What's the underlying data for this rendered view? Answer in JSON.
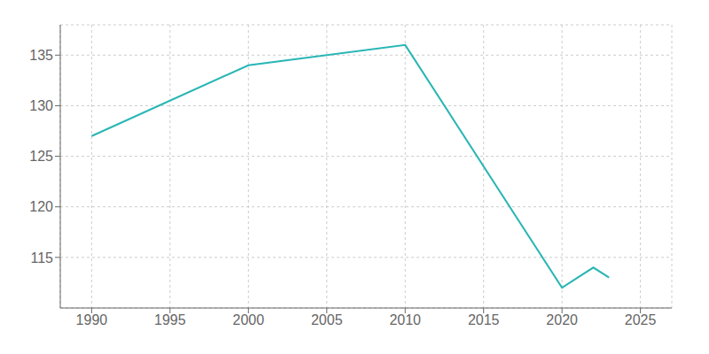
{
  "chart_data": {
    "type": "line",
    "x": [
      1990,
      2000,
      2010,
      2020,
      2021,
      2022,
      2023
    ],
    "values": [
      127,
      134,
      136,
      112,
      113,
      114,
      113
    ],
    "color": "#29b5b5",
    "xlim": [
      1988,
      2027
    ],
    "ylim": [
      110,
      138
    ],
    "xticks": [
      1990,
      1995,
      2000,
      2005,
      2010,
      2015,
      2020,
      2025
    ],
    "yticks": [
      115,
      120,
      125,
      130,
      135
    ],
    "grid": true
  }
}
